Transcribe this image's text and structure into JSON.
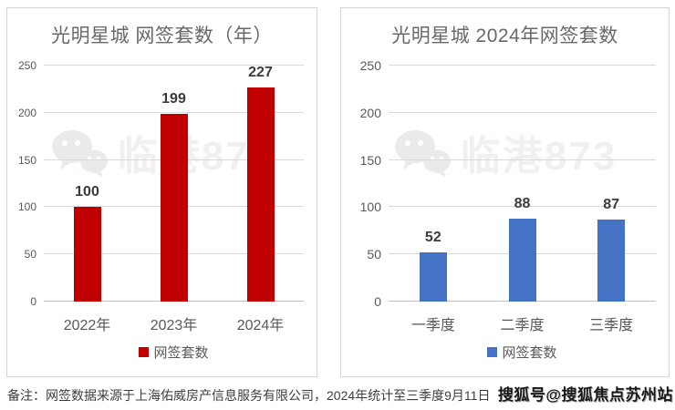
{
  "watermark": {
    "text": "临港873",
    "icon": "wechat-icon"
  },
  "footer": {
    "note_prefix": "备注：",
    "note_text": "网签数据来源于上海佑威房产信息服务有限公司，2024年统计至三季度9月11日",
    "sohu_watermark": "搜狐号@搜狐焦点苏州站"
  },
  "colors": {
    "red_bar": "#C00000",
    "blue_bar": "#4472C4",
    "gridline": "#D9D9D9",
    "axis_text": "#595959",
    "panel_border": "#D6D4D4",
    "watermark_gray": "#F1EFEF"
  },
  "chart_data": [
    {
      "type": "bar",
      "title": "光明星城 网签套数（年）",
      "categories": [
        "2022年",
        "2023年",
        "2024年"
      ],
      "series": [
        {
          "name": "网签套数",
          "values": [
            100,
            199,
            227
          ]
        }
      ],
      "bar_color": "#C00000",
      "ylim": [
        0,
        250
      ],
      "yticks": [
        0,
        50,
        100,
        150,
        200,
        250
      ],
      "grid": true,
      "legend_position": "bottom"
    },
    {
      "type": "bar",
      "title": "光明星城 2024年网签套数",
      "categories": [
        "一季度",
        "二季度",
        "三季度"
      ],
      "series": [
        {
          "name": "网签套数",
          "values": [
            52,
            88,
            87
          ]
        }
      ],
      "bar_color": "#4472C4",
      "ylim": [
        0,
        250
      ],
      "yticks": [
        0,
        50,
        100,
        150,
        200,
        250
      ],
      "grid": true,
      "legend_position": "bottom"
    }
  ]
}
